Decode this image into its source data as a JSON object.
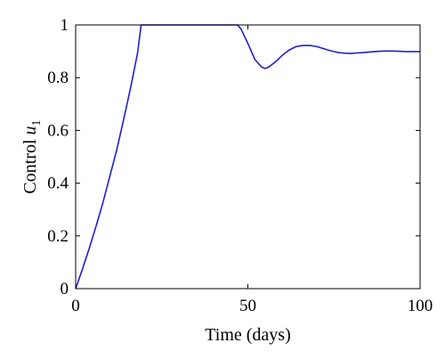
{
  "chart_data": {
    "type": "line",
    "xlabel": "Time (days)",
    "ylabel": {
      "text": "Control ",
      "symbol": "u",
      "subscript": "1"
    },
    "xlim": [
      0,
      100
    ],
    "ylim": [
      0,
      1
    ],
    "xticks": [
      0,
      50,
      100
    ],
    "xtick_labels": [
      "0",
      "50",
      "100"
    ],
    "yticks": [
      0,
      0.2,
      0.4,
      0.6,
      0.8,
      1
    ],
    "ytick_labels": [
      "0",
      "0.2",
      "0.4",
      "0.6",
      "0.8",
      "1"
    ],
    "grid": false,
    "series": [
      {
        "color": "#1f1fd6",
        "x": [
          0,
          2,
          4,
          6,
          8,
          10,
          12,
          14,
          16,
          18,
          19,
          25,
          30,
          35,
          40,
          45,
          47,
          48,
          50,
          52,
          54,
          55,
          56,
          58,
          60,
          62,
          64,
          66,
          68,
          70,
          72,
          74,
          76,
          78,
          80,
          82,
          84,
          86,
          88,
          90,
          92,
          94,
          96,
          98,
          100
        ],
        "y": [
          0,
          0.075,
          0.155,
          0.24,
          0.33,
          0.43,
          0.53,
          0.645,
          0.765,
          0.895,
          1.0,
          1.0,
          1.0,
          1.0,
          1.0,
          1.0,
          1.0,
          0.985,
          0.93,
          0.87,
          0.84,
          0.835,
          0.84,
          0.86,
          0.885,
          0.905,
          0.918,
          0.922,
          0.922,
          0.918,
          0.91,
          0.902,
          0.896,
          0.893,
          0.892,
          0.894,
          0.896,
          0.898,
          0.9,
          0.901,
          0.901,
          0.9,
          0.899,
          0.899,
          0.899
        ]
      }
    ]
  }
}
